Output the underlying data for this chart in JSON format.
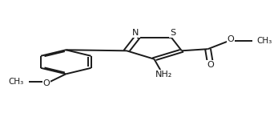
{
  "bg_color": "#ffffff",
  "line_color": "#1a1a1a",
  "line_width": 1.4,
  "figsize": [
    3.47,
    1.46
  ],
  "dpi": 100,
  "labels": {
    "S": "S",
    "N": "N",
    "O_ester_double": "O",
    "O_ester_single": "O",
    "CH3_ester": "CH₃",
    "NH2": "NH₂",
    "O_methoxy": "O",
    "CH3_methoxy": "CH₃"
  }
}
